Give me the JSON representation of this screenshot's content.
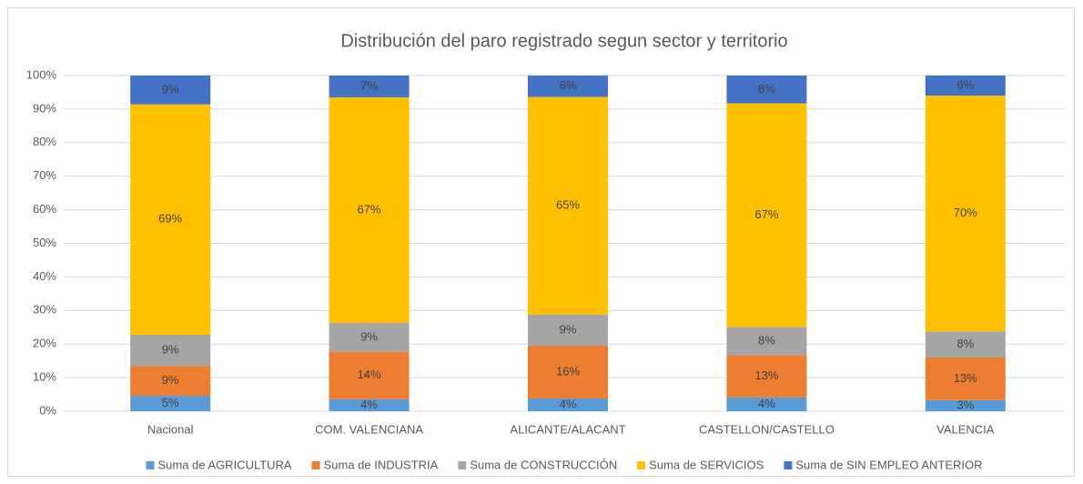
{
  "chart_data": {
    "type": "stacked_bar",
    "title": "Distribución del paro registrado segun sector y territorio",
    "categories": [
      "Nacional",
      "COM. VALENCIANA",
      "ALICANTE/ALACANT",
      "CASTELLON/CASTELLO",
      "VALENCIA"
    ],
    "series": [
      {
        "name": "Suma de AGRICULTURA",
        "color": "#5b9bd5",
        "values": [
          4.6,
          3.6,
          3.8,
          4.1,
          3.3
        ],
        "value_labels": [
          "5%",
          "4%",
          "4%",
          "4%",
          "3%"
        ]
      },
      {
        "name": "Suma de INDUSTRIA",
        "color": "#ed7d31",
        "values": [
          8.9,
          14.1,
          15.7,
          12.6,
          12.7
        ],
        "value_labels": [
          "9%",
          "14%",
          "16%",
          "13%",
          "13%"
        ]
      },
      {
        "name": "Suma de CONSTRUCCIÓN",
        "color": "#a5a5a5",
        "values": [
          9.3,
          8.6,
          9.3,
          8.4,
          7.8
        ],
        "value_labels": [
          "9%",
          "9%",
          "9%",
          "8%",
          "8%"
        ]
      },
      {
        "name": "Suma de SERVICIOS",
        "color": "#ffc000",
        "values": [
          68.6,
          67.2,
          64.8,
          66.6,
          70.2
        ],
        "value_labels": [
          "69%",
          "67%",
          "65%",
          "67%",
          "70%"
        ]
      },
      {
        "name": "Suma de SIN EMPLEO ANTERIOR",
        "color": "#4472c4",
        "values": [
          8.6,
          6.5,
          6.4,
          8.3,
          6.0
        ],
        "value_labels": [
          "9%",
          "7%",
          "6%",
          "8%",
          "6%"
        ]
      }
    ],
    "ylim": [
      0,
      100
    ],
    "yticks": [
      {
        "value": 0,
        "label": "0%"
      },
      {
        "value": 10,
        "label": "10%"
      },
      {
        "value": 20,
        "label": "20%"
      },
      {
        "value": 30,
        "label": "30%"
      },
      {
        "value": 40,
        "label": "40%"
      },
      {
        "value": 50,
        "label": "50%"
      },
      {
        "value": 60,
        "label": "60%"
      },
      {
        "value": 70,
        "label": "70%"
      },
      {
        "value": 80,
        "label": "80%"
      },
      {
        "value": 90,
        "label": "90%"
      },
      {
        "value": 100,
        "label": "100%"
      }
    ],
    "grid": true,
    "legend": "bottom"
  }
}
